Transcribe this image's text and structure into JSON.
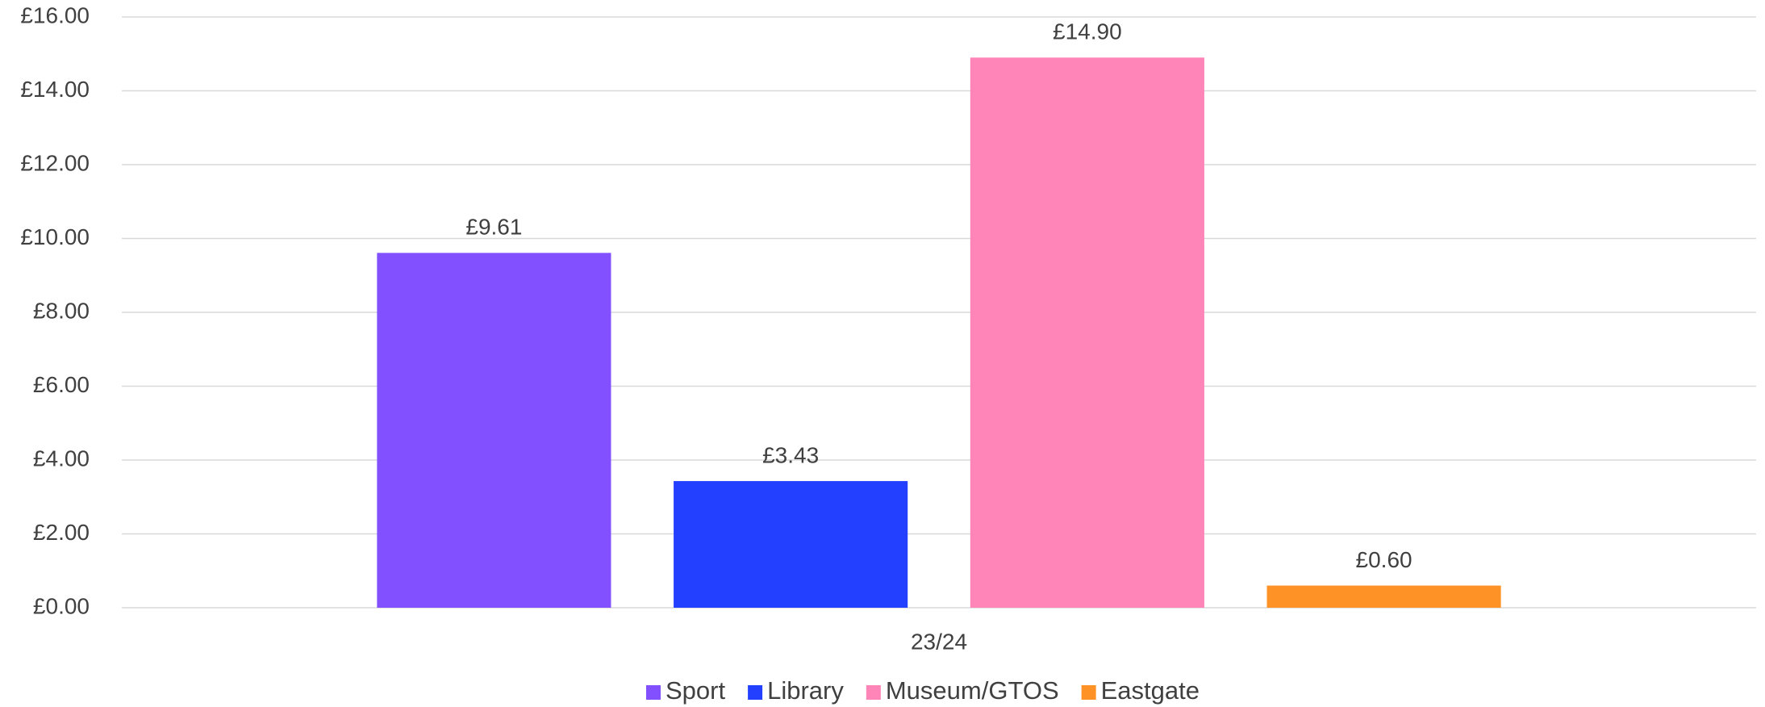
{
  "chart_data": {
    "type": "bar",
    "categories": [
      "23/24"
    ],
    "series": [
      {
        "name": "Sport",
        "color": "#8350ff",
        "values": [
          9.61
        ],
        "value_labels": [
          "£9.61"
        ]
      },
      {
        "name": "Library",
        "color": "#233fff",
        "values": [
          3.43
        ],
        "value_labels": [
          "£3.43"
        ]
      },
      {
        "name": "Museum/GTOS",
        "color": "#ff85b8",
        "values": [
          14.9
        ],
        "value_labels": [
          "£14.90"
        ]
      },
      {
        "name": "Eastgate",
        "color": "#ff9226",
        "values": [
          0.6
        ],
        "value_labels": [
          "£0.60"
        ]
      }
    ],
    "ylim": [
      0,
      16
    ],
    "yticks": [
      {
        "value": 0,
        "label": "£0.00"
      },
      {
        "value": 2,
        "label": "£2.00"
      },
      {
        "value": 4,
        "label": "£4.00"
      },
      {
        "value": 6,
        "label": "£6.00"
      },
      {
        "value": 8,
        "label": "£8.00"
      },
      {
        "value": 10,
        "label": "£10.00"
      },
      {
        "value": 12,
        "label": "£12.00"
      },
      {
        "value": 14,
        "label": "£14.00"
      },
      {
        "value": 16,
        "label": "£16.00"
      }
    ],
    "grid": true,
    "legend": "bottom"
  }
}
